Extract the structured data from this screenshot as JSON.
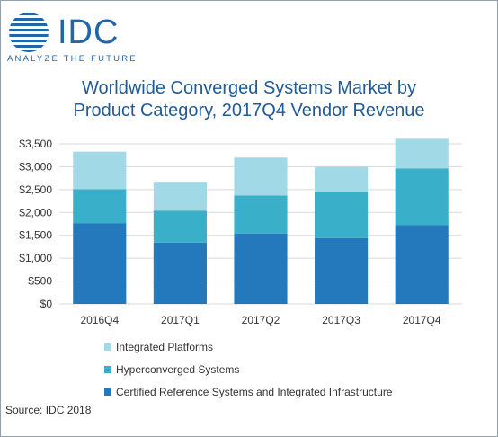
{
  "brand": {
    "name": "IDC",
    "tagline": "ANALYZE THE FUTURE",
    "color": "#2167a8"
  },
  "chart_data": {
    "type": "bar",
    "stacked": true,
    "title": "Worldwide Converged Systems Market by Product Category, 2017Q4 Vendor Revenue",
    "title_lines": [
      "Worldwide Converged Systems Market by",
      "Product Category, 2017Q4 Vendor Revenue"
    ],
    "categories": [
      "2016Q4",
      "2017Q1",
      "2017Q2",
      "2017Q3",
      "2017Q4"
    ],
    "series": [
      {
        "name": "Certified Reference Systems and Integrated Infrastructure",
        "color": "#2479bd",
        "values": [
          1760,
          1340,
          1540,
          1440,
          1720
        ]
      },
      {
        "name": "Hyperconverged Systems",
        "color": "#3aafc9",
        "values": [
          750,
          700,
          830,
          1010,
          1240
        ]
      },
      {
        "name": "Integrated Platforms",
        "color": "#a2d9e7",
        "values": [
          820,
          630,
          830,
          550,
          650
        ]
      }
    ],
    "legend_order": [
      "Integrated Platforms",
      "Hyperconverged Systems",
      "Certified Reference Systems and Integrated Infrastructure"
    ],
    "ylim": [
      0,
      3500
    ],
    "y_ticks": [
      0,
      500,
      1000,
      1500,
      2000,
      2500,
      3000,
      3500
    ],
    "y_tick_labels": [
      "$0",
      "$500",
      "$1,000",
      "$1,500",
      "$2,000",
      "$2,500",
      "$3,000",
      "$3,500"
    ],
    "xlabel": "",
    "ylabel": "",
    "grid": true,
    "legend_position": "bottom-left"
  },
  "source": "Source: IDC 2018"
}
